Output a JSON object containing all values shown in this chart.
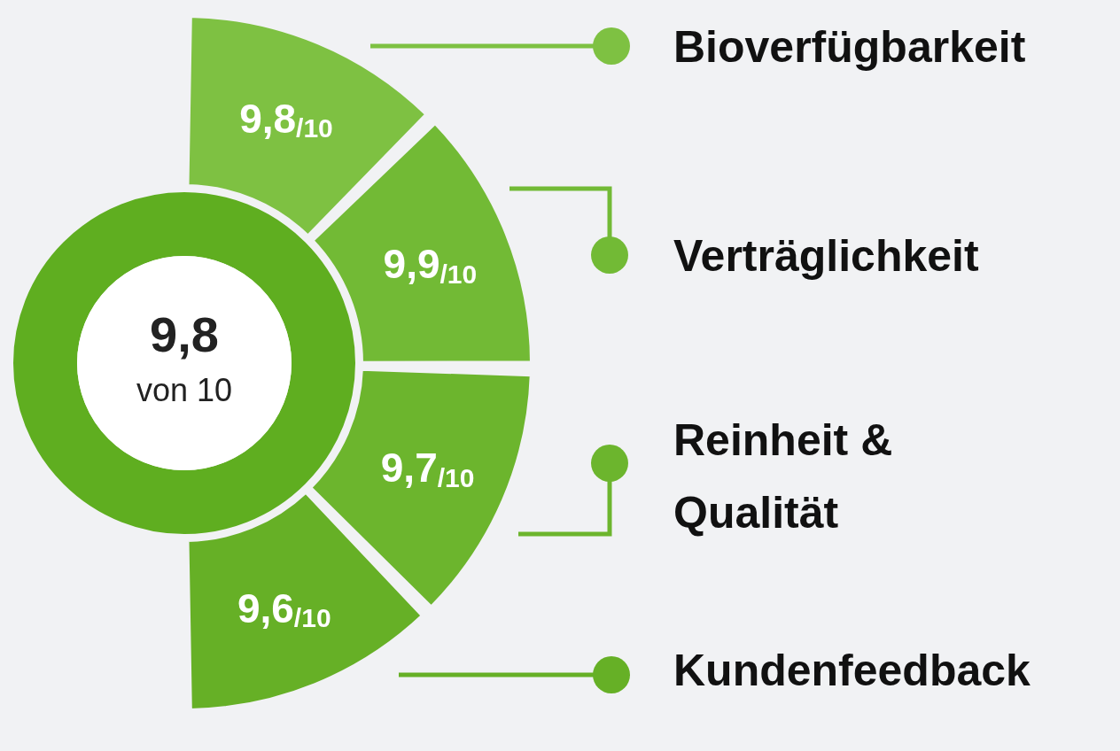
{
  "chart_data": {
    "type": "donut",
    "categories": [
      "Bioverfügbarkeit",
      "Verträglichkeit",
      "Reinheit & Qualität",
      "Kundenfeedback"
    ],
    "values": [
      9.8,
      9.9,
      9.7,
      9.6
    ],
    "colors": [
      "#7ec142",
      "#72ba35",
      "#6cb52d",
      "#66b026"
    ],
    "value_labels": [
      "9,8$_{/10}$",
      "9,9$_{/10}$",
      "9,7$_{/10}$",
      "9,6$_{/10}$"
    ],
    "annotations": [
      "9,8",
      "von 10"
    ],
    "legend": "right"
  }
}
